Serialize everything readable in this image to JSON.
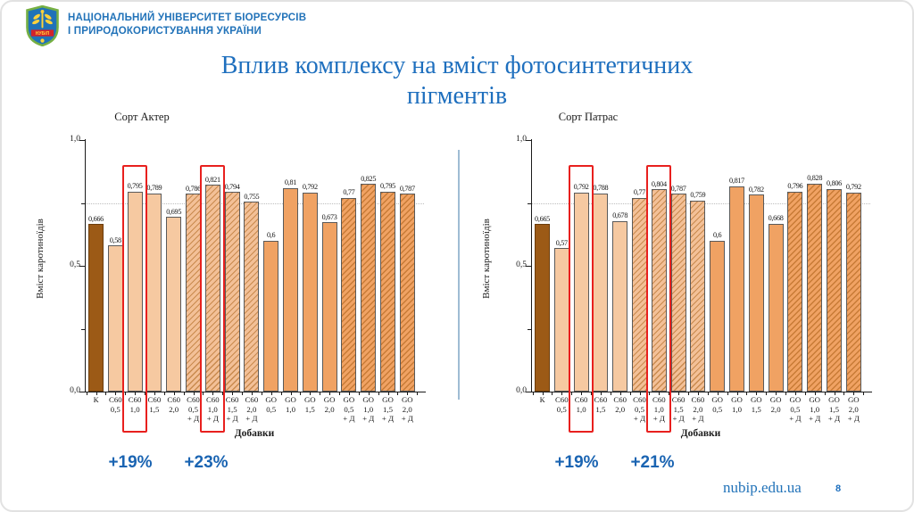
{
  "slide": {
    "header": {
      "logo_text": "НУБіП",
      "university_name_line1": "НАЦІОНАЛЬНИЙ УНІВЕРСИТЕТ БІОРЕСУРСІВ",
      "university_name_line2": "І ПРИРОДОКОРИСТУВАННЯ УКРАЇНИ"
    },
    "title_line1": "Вплив комплексу на вміст фотосинтетичних",
    "title_line2": "пігментів",
    "footer": {
      "website": "nubip.edu.ua",
      "page_number": "8"
    }
  },
  "colors": {
    "title_blue": "#1E6FBE",
    "header_blue": "#2273B9",
    "annotation_blue": "#1A64B2",
    "highlight_red": "#E8201E",
    "divider_blue": "#9FBCD4",
    "bar_control": "#9C5A16",
    "bar_control_border": "#6B3D0C",
    "bar_c60": "#F6C9A1",
    "bar_c60_hatch_bg": "#F3C097",
    "bar_c60_hatch_stripe": "#C98A4E",
    "bar_go": "#F0A263",
    "bar_go_hatch_bg": "#F0A263",
    "bar_go_hatch_stripe": "#C87B36",
    "bar_border": "#5a5a5a"
  },
  "chart_data": [
    {
      "type": "bar",
      "title": "Сорт Актер",
      "ylabel": "Вміст каротиноїдів",
      "xlabel": "Добавки",
      "ylim": [
        0,
        1
      ],
      "yticks": [
        {
          "value": 0,
          "label": "0,0"
        },
        {
          "value": 0.25,
          "label": ""
        },
        {
          "value": 0.5,
          "label": "0,5"
        },
        {
          "value": 0.75,
          "label": ""
        },
        {
          "value": 1,
          "label": "1,0"
        }
      ],
      "gridline_y": 0.75,
      "categories": [
        "К",
        "С60 0,5",
        "С60 1,0",
        "С60 1,5",
        "С60 2,0",
        "С60 0,5 + Д",
        "С60 1,0 + Д",
        "С60 1,5 + Д",
        "С60 2,0 + Д",
        "GO 0,5",
        "GO 1,0",
        "GO 1,5",
        "GO 2,0",
        "GO 0,5 + Д",
        "GO 1,0 + Д",
        "GO 1,5 + Д",
        "GO 2,0 + Д"
      ],
      "values": [
        0.666,
        0.58,
        0.795,
        0.789,
        0.695,
        0.786,
        0.821,
        0.794,
        0.755,
        0.6,
        0.81,
        0.792,
        0.673,
        0.77,
        0.825,
        0.795,
        0.787
      ],
      "value_labels": [
        "0,666",
        "0,58",
        "0,795",
        "0,789",
        "0,695",
        "0,786",
        "0,821",
        "0,794",
        "0,755",
        "0,6",
        "0,81",
        "0,792",
        "0,673",
        "0,77",
        "0,825",
        "0,795",
        "0,787"
      ],
      "bar_styles": [
        "control",
        "c60",
        "c60",
        "c60",
        "c60",
        "c60d",
        "c60d",
        "c60d",
        "c60d",
        "go",
        "go",
        "go",
        "go",
        "god",
        "god",
        "god",
        "god"
      ],
      "highlighted_bars": [
        2,
        6
      ],
      "annotations": [
        "+19%",
        "+23%"
      ]
    },
    {
      "type": "bar",
      "title": "Сорт Патрас",
      "ylabel": "Вміст каротиноїдів",
      "xlabel": "Добавки",
      "ylim": [
        0,
        1
      ],
      "yticks": [
        {
          "value": 0,
          "label": "0,0"
        },
        {
          "value": 0.25,
          "label": ""
        },
        {
          "value": 0.5,
          "label": "0,5"
        },
        {
          "value": 0.75,
          "label": ""
        },
        {
          "value": 1,
          "label": "1,0"
        }
      ],
      "gridline_y": 0.75,
      "categories": [
        "К",
        "С60 0,5",
        "С60 1,0",
        "С60 1,5",
        "С60 2,0",
        "С60 0,5 + Д",
        "С60 1,0 + Д",
        "С60 1,5 + Д",
        "С60 2,0 + Д",
        "GO 0,5",
        "GO 1,0",
        "GO 1,5",
        "GO 2,0",
        "GO 0,5 + Д",
        "GO 1,0 + Д",
        "GO 1,5 + Д",
        "GO 2,0 + Д"
      ],
      "values": [
        0.665,
        0.57,
        0.792,
        0.788,
        0.678,
        0.77,
        0.804,
        0.787,
        0.759,
        0.6,
        0.817,
        0.782,
        0.668,
        0.796,
        0.828,
        0.806,
        0.792
      ],
      "value_labels": [
        "0,665",
        "0,57",
        "0,792",
        "0,788",
        "0,678",
        "0,77",
        "0,804",
        "0,787",
        "0,759",
        "0,6",
        "0,817",
        "0,782",
        "0,668",
        "0,796",
        "0,828",
        "0,806",
        "0,792"
      ],
      "bar_styles": [
        "control",
        "c60",
        "c60",
        "c60",
        "c60",
        "c60d",
        "c60d",
        "c60d",
        "c60d",
        "go",
        "go",
        "go",
        "go",
        "god",
        "god",
        "god",
        "god"
      ],
      "highlighted_bars": [
        2,
        6
      ],
      "annotations": [
        "+19%",
        "+21%"
      ]
    }
  ]
}
